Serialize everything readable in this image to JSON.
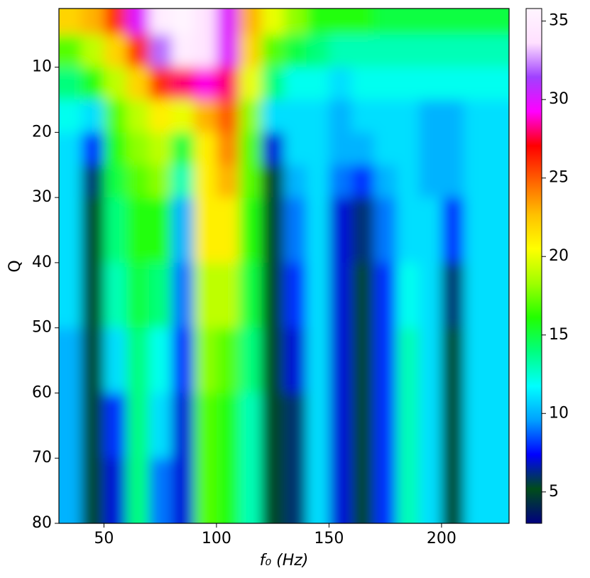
{
  "chart_data": {
    "type": "heatmap",
    "x_label": "f₀ (Hz)",
    "y_label": "Q",
    "xbins": [
      30,
      40,
      50,
      60,
      70,
      80,
      90,
      100,
      110,
      120,
      130,
      140,
      150,
      160,
      170,
      180,
      190,
      200,
      210,
      220,
      230
    ],
    "ybins": [
      1,
      5,
      10,
      15,
      20,
      25,
      30,
      40,
      50,
      60,
      70,
      80
    ],
    "values": [
      [
        22,
        23,
        26,
        30,
        35,
        36,
        34,
        30,
        23,
        20,
        18,
        16,
        16,
        16,
        15,
        15,
        15,
        15,
        15,
        15
      ],
      [
        17,
        19,
        22,
        26,
        32,
        35,
        34,
        30,
        22,
        17,
        15,
        14,
        13,
        13,
        13,
        13,
        13,
        13,
        13,
        13
      ],
      [
        14,
        16,
        19,
        22,
        26,
        28,
        29,
        28,
        20,
        14,
        12,
        12,
        11,
        12,
        12,
        12,
        12,
        12,
        12,
        12
      ],
      [
        12,
        11,
        17,
        19,
        21,
        20,
        23,
        25,
        18,
        11,
        11,
        11,
        10,
        11,
        11,
        11,
        10,
        10,
        11,
        11
      ],
      [
        11,
        8,
        16,
        18,
        19,
        15,
        21,
        24,
        17,
        7,
        11,
        11,
        10,
        10,
        11,
        11,
        10,
        10,
        11,
        11
      ],
      [
        11,
        6,
        15,
        17,
        18,
        13,
        21,
        23,
        17,
        5,
        10,
        11,
        9,
        8,
        10,
        11,
        10,
        10,
        11,
        11
      ],
      [
        11,
        5,
        14,
        16,
        16,
        10,
        21,
        21,
        16,
        5,
        9,
        11,
        7,
        6,
        9,
        11,
        11,
        8,
        11,
        11
      ],
      [
        11,
        5,
        13,
        15,
        14,
        9,
        19,
        19,
        15,
        5,
        8,
        11,
        7,
        5,
        8,
        12,
        11,
        6,
        11,
        11
      ],
      [
        10,
        5,
        11,
        14,
        12,
        8,
        18,
        17,
        14,
        5,
        7,
        11,
        7,
        5,
        8,
        13,
        11,
        5,
        11,
        11
      ],
      [
        10,
        5,
        8,
        14,
        11,
        7,
        17,
        16,
        13,
        5,
        6,
        11,
        7,
        5,
        8,
        13,
        11,
        5,
        11,
        11
      ],
      [
        10,
        5,
        7,
        14,
        9,
        7,
        17,
        16,
        13,
        5,
        6,
        11,
        7,
        5,
        8,
        13,
        11,
        5,
        11,
        11
      ]
    ],
    "xlim": [
      30,
      230
    ],
    "xticks": [
      50,
      100,
      150,
      200
    ],
    "ylim": [
      80,
      1
    ],
    "yticks": [
      10,
      20,
      30,
      40,
      50,
      60,
      70,
      80
    ],
    "zlim": [
      3,
      35.8
    ],
    "zticks": [
      5,
      10,
      15,
      20,
      25,
      30,
      35
    ],
    "colormap": [
      "#000080",
      "#004d1a",
      "#0000ff",
      "#00a0ff",
      "#00ffff",
      "#00ff80",
      "#22ff00",
      "#a0ff00",
      "#ffff00",
      "#ffc000",
      "#ff6000",
      "#ff0000",
      "#ff00ff",
      "#a040ff",
      "#ffe0ff",
      "#fff5ff"
    ]
  }
}
